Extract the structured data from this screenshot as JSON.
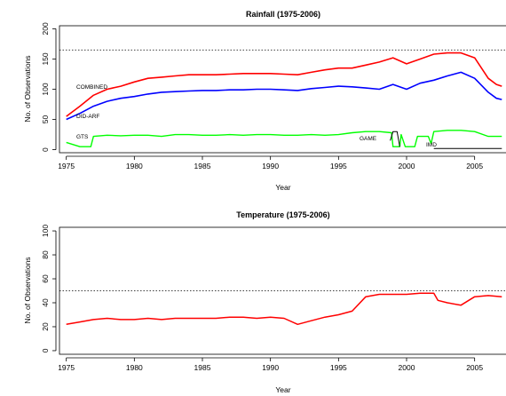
{
  "figure": {
    "ylabel": "No. of Observations",
    "xlabel": "Year"
  },
  "chart_data": [
    {
      "type": "line",
      "title": "Rainfall (1975-2006)",
      "xlabel": "Year",
      "ylabel": "No. of Observations",
      "xlim": [
        1974.5,
        2007.5
      ],
      "ylim": [
        -5,
        205
      ],
      "x_ticks": [
        1975,
        1980,
        1985,
        1990,
        1995,
        2000,
        2005
      ],
      "y_ticks": [
        0,
        50,
        100,
        150,
        200
      ],
      "reference_line": {
        "y": 165,
        "style": "dotted"
      },
      "series": [
        {
          "name": "COMBINED",
          "color": "#ff0000",
          "points": [
            [
              1975,
              55
            ],
            [
              1976,
              72
            ],
            [
              1977,
              90
            ],
            [
              1978,
              100
            ],
            [
              1979,
              105
            ],
            [
              1980,
              112
            ],
            [
              1981,
              118
            ],
            [
              1982,
              120
            ],
            [
              1983,
              122
            ],
            [
              1984,
              124
            ],
            [
              1985,
              124
            ],
            [
              1986,
              124
            ],
            [
              1987,
              125
            ],
            [
              1988,
              126
            ],
            [
              1989,
              126
            ],
            [
              1990,
              126
            ],
            [
              1991,
              125
            ],
            [
              1992,
              124
            ],
            [
              1993,
              128
            ],
            [
              1994,
              132
            ],
            [
              1995,
              135
            ],
            [
              1996,
              135
            ],
            [
              1997,
              140
            ],
            [
              1998,
              145
            ],
            [
              1999,
              152
            ],
            [
              2000,
              142
            ],
            [
              2001,
              150
            ],
            [
              2002,
              158
            ],
            [
              2003,
              160
            ],
            [
              2004,
              160
            ],
            [
              2005,
              152
            ],
            [
              2006,
              118
            ],
            [
              2006.6,
              108
            ],
            [
              2007,
              105
            ]
          ]
        },
        {
          "name": "DID-ARF",
          "color": "#0000ff",
          "points": [
            [
              1975,
              50
            ],
            [
              1976,
              60
            ],
            [
              1977,
              72
            ],
            [
              1978,
              80
            ],
            [
              1979,
              85
            ],
            [
              1980,
              88
            ],
            [
              1981,
              92
            ],
            [
              1982,
              95
            ],
            [
              1983,
              96
            ],
            [
              1984,
              97
            ],
            [
              1985,
              98
            ],
            [
              1986,
              98
            ],
            [
              1987,
              99
            ],
            [
              1988,
              99
            ],
            [
              1989,
              100
            ],
            [
              1990,
              100
            ],
            [
              1991,
              99
            ],
            [
              1992,
              98
            ],
            [
              1993,
              101
            ],
            [
              1994,
              103
            ],
            [
              1995,
              105
            ],
            [
              1996,
              104
            ],
            [
              1997,
              102
            ],
            [
              1998,
              100
            ],
            [
              1999,
              108
            ],
            [
              2000,
              100
            ],
            [
              2001,
              110
            ],
            [
              2002,
              115
            ],
            [
              2003,
              122
            ],
            [
              2004,
              128
            ],
            [
              2005,
              118
            ],
            [
              2006,
              95
            ],
            [
              2006.6,
              85
            ],
            [
              2007,
              83
            ]
          ]
        },
        {
          "name": "GTS",
          "color": "#00ff00",
          "points": [
            [
              1975,
              12
            ],
            [
              1976,
              5
            ],
            [
              1976.8,
              5
            ],
            [
              1977,
              22
            ],
            [
              1978,
              24
            ],
            [
              1979,
              23
            ],
            [
              1980,
              24
            ],
            [
              1981,
              24
            ],
            [
              1982,
              22
            ],
            [
              1983,
              25
            ],
            [
              1984,
              25
            ],
            [
              1985,
              24
            ],
            [
              1986,
              24
            ],
            [
              1987,
              25
            ],
            [
              1988,
              24
            ],
            [
              1989,
              25
            ],
            [
              1990,
              25
            ],
            [
              1991,
              24
            ],
            [
              1992,
              24
            ],
            [
              1993,
              25
            ],
            [
              1994,
              24
            ],
            [
              1995,
              25
            ],
            [
              1996,
              28
            ],
            [
              1997,
              30
            ],
            [
              1998,
              30
            ],
            [
              1998.9,
              28
            ],
            [
              1999,
              5
            ],
            [
              1999.5,
              5
            ],
            [
              1999.6,
              25
            ],
            [
              1999.9,
              5
            ],
            [
              2000.6,
              5
            ],
            [
              2000.8,
              22
            ],
            [
              2001.6,
              22
            ],
            [
              2001.8,
              10
            ],
            [
              2002,
              30
            ],
            [
              2003,
              32
            ],
            [
              2004,
              32
            ],
            [
              2005,
              30
            ],
            [
              2006,
              22
            ],
            [
              2007,
              22
            ]
          ]
        },
        {
          "name": "GAME",
          "color": "#000000",
          "points": [
            [
              1998.8,
              15
            ],
            [
              1999,
              30
            ],
            [
              1999.3,
              30
            ],
            [
              1999.5,
              5
            ]
          ]
        },
        {
          "name": "IMD",
          "color": "#000000",
          "points": [
            [
              2002,
              2
            ],
            [
              2003,
              2
            ],
            [
              2004,
              2
            ],
            [
              2005,
              2
            ],
            [
              2006,
              2
            ],
            [
              2007,
              2
            ]
          ]
        }
      ],
      "annotations": [
        "COMBINED",
        "DID-ARF",
        "GTS",
        "GAME",
        "IMD"
      ]
    },
    {
      "type": "line",
      "title": "Temperature (1975-2006)",
      "xlabel": "Year",
      "ylabel": "No. of Observations",
      "xlim": [
        1974.5,
        2007.5
      ],
      "ylim": [
        -3,
        103
      ],
      "x_ticks": [
        1975,
        1980,
        1985,
        1990,
        1995,
        2000,
        2005
      ],
      "y_ticks": [
        0,
        20,
        40,
        60,
        80,
        100
      ],
      "reference_line": {
        "y": 50,
        "style": "dotted"
      },
      "series": [
        {
          "name": "",
          "color": "#ff0000",
          "points": [
            [
              1975,
              22
            ],
            [
              1976,
              24
            ],
            [
              1977,
              26
            ],
            [
              1978,
              27
            ],
            [
              1979,
              26
            ],
            [
              1980,
              26
            ],
            [
              1981,
              27
            ],
            [
              1982,
              26
            ],
            [
              1983,
              27
            ],
            [
              1984,
              27
            ],
            [
              1985,
              27
            ],
            [
              1986,
              27
            ],
            [
              1987,
              28
            ],
            [
              1988,
              28
            ],
            [
              1989,
              27
            ],
            [
              1990,
              28
            ],
            [
              1991,
              27
            ],
            [
              1992,
              22
            ],
            [
              1993,
              25
            ],
            [
              1994,
              28
            ],
            [
              1995,
              30
            ],
            [
              1996,
              33
            ],
            [
              1997,
              45
            ],
            [
              1998,
              47
            ],
            [
              1999,
              47
            ],
            [
              2000,
              47
            ],
            [
              2001,
              48
            ],
            [
              2002,
              48
            ],
            [
              2002.3,
              42
            ],
            [
              2003,
              40
            ],
            [
              2004,
              38
            ],
            [
              2005,
              45
            ],
            [
              2006,
              46
            ],
            [
              2007,
              45
            ]
          ]
        }
      ]
    }
  ]
}
